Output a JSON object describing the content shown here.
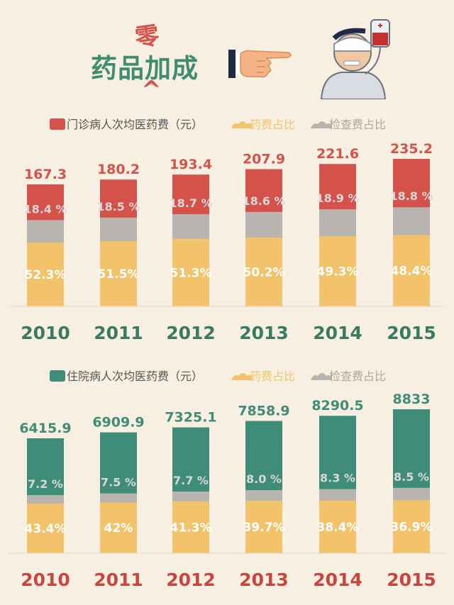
{
  "header": {
    "title": "药品加成",
    "zero_char": "零",
    "caret": "^"
  },
  "icons": {
    "hand": "pointing-hand-icon",
    "patient": "patient-iv-drip-icon"
  },
  "chart_data": [
    {
      "type": "bar",
      "stacked": true,
      "legend": [
        "门诊病人次均医药费（元）",
        "药费占比",
        "检查费占比"
      ],
      "legend_placement": "top-left",
      "categories": [
        "2010",
        "2011",
        "2012",
        "2013",
        "2014",
        "2015"
      ],
      "totals": [
        "167.3",
        "180.2",
        "193.4",
        "207.9",
        "221.6",
        "235.2"
      ],
      "total_values": [
        167.3,
        180.2,
        193.4,
        207.9,
        221.6,
        235.2
      ],
      "drug_ratio": [
        52.3,
        51.5,
        51.3,
        50.2,
        49.3,
        48.4
      ],
      "drug_labels": [
        "52.3%",
        "51.5%",
        "51.3%",
        "50.2%",
        "49.3%",
        "48.4%"
      ],
      "exam_ratio": [
        18.4,
        18.5,
        18.7,
        18.6,
        18.9,
        18.8
      ],
      "exam_labels": [
        "18.4 %",
        "18.5 %",
        "18.7 %",
        "18.6 %",
        "18.9 %",
        "18.8 %"
      ],
      "colors": {
        "total": "#d4524a",
        "drug": "#f2c36b",
        "exam": "#b8b4b0",
        "year": "#3a7a64"
      }
    },
    {
      "type": "bar",
      "stacked": true,
      "legend": [
        "住院病人次均医药费（元）",
        "药费占比",
        "检查费占比"
      ],
      "legend_placement": "top-left",
      "categories": [
        "2010",
        "2011",
        "2012",
        "2013",
        "2014",
        "2015"
      ],
      "totals": [
        "6415.9",
        "6909.9",
        "7325.1",
        "7858.9",
        "8290.5",
        "8833"
      ],
      "total_values": [
        6415.9,
        6909.9,
        7325.1,
        7858.9,
        8290.5,
        8833
      ],
      "drug_ratio": [
        43.4,
        42,
        41.3,
        39.7,
        38.4,
        36.9
      ],
      "drug_labels": [
        "43.4%",
        "42%",
        "41.3%",
        "39.7%",
        "38.4%",
        "36.9%"
      ],
      "exam_ratio": [
        7.2,
        7.5,
        7.7,
        8.0,
        8.3,
        8.5
      ],
      "exam_labels": [
        "7.2 %",
        "7.5 %",
        "7.7 %",
        "8.0 %",
        "8.3 %",
        "8.5 %"
      ],
      "colors": {
        "total": "#3f8c78",
        "drug": "#f2c36b",
        "exam": "#b8b4b0",
        "year": "#c8463f"
      }
    }
  ]
}
